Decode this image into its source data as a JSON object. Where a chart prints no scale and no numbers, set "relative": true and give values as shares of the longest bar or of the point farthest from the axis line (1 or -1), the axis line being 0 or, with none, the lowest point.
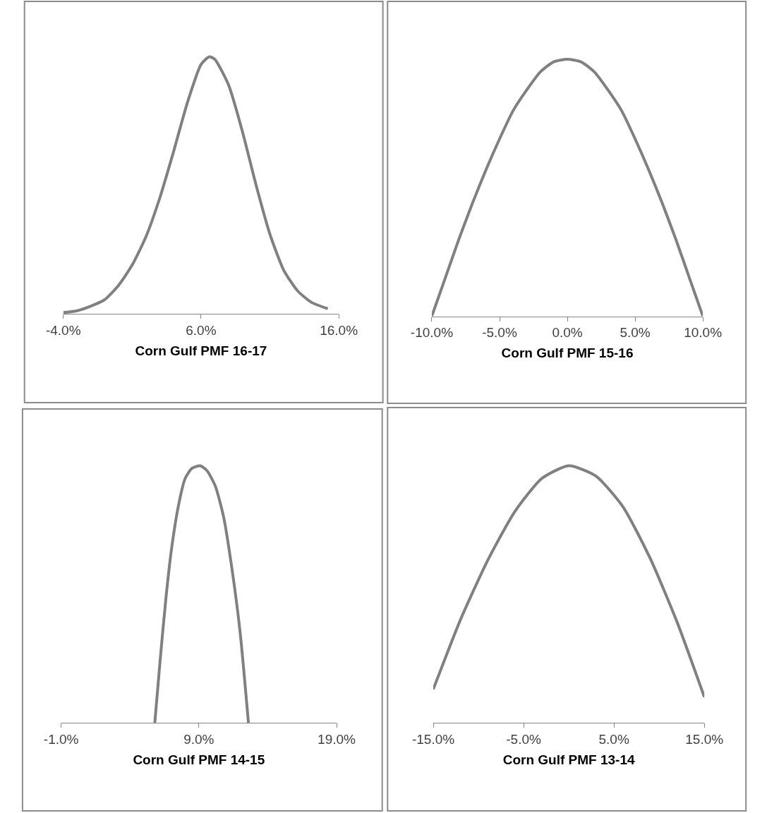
{
  "chart_data": [
    {
      "type": "line",
      "relative": true,
      "xlabel": "Corn Gulf PMF 16-17",
      "xlim": [
        -4,
        16
      ],
      "xticks": [
        {
          "value": -4,
          "label": "-4.0%"
        },
        {
          "value": 6,
          "label": "6.0%"
        },
        {
          "value": 16,
          "label": "16.0%"
        }
      ],
      "tick_labels": "x",
      "grid": false,
      "marker": "none",
      "line_style": "solid",
      "series": [
        {
          "color": "#808080",
          "x": [
            -4,
            -3,
            -2,
            -1,
            0,
            1,
            2,
            3,
            4,
            5,
            6,
            6.6,
            7,
            8,
            9,
            10,
            11,
            12,
            13,
            14,
            15.2
          ],
          "values": [
            0.005,
            0.012,
            0.03,
            0.055,
            0.11,
            0.19,
            0.3,
            0.45,
            0.63,
            0.82,
            0.97,
            1,
            0.99,
            0.89,
            0.71,
            0.5,
            0.31,
            0.17,
            0.09,
            0.045,
            0.02
          ]
        }
      ]
    },
    {
      "type": "line",
      "relative": true,
      "xlabel": "Corn Gulf PMF 15-16",
      "xlim": [
        -10,
        10
      ],
      "xticks": [
        {
          "value": -10,
          "label": "-10.0%"
        },
        {
          "value": -5,
          "label": "-5.0%"
        },
        {
          "value": 0,
          "label": "0.0%"
        },
        {
          "value": 5,
          "label": "5.0%"
        },
        {
          "value": 10,
          "label": "10.0%"
        }
      ],
      "tick_labels": "x",
      "grid": false,
      "marker": "none",
      "line_style": "solid",
      "series": [
        {
          "color": "#808080",
          "x": [
            -10,
            -9,
            -8,
            -7,
            -6,
            -5,
            -4,
            -3,
            -2,
            -1,
            0,
            1,
            2,
            3,
            4,
            5,
            6,
            7,
            8,
            9,
            10
          ],
          "values": [
            0,
            0.15,
            0.3,
            0.44,
            0.57,
            0.69,
            0.8,
            0.88,
            0.95,
            0.99,
            1,
            0.99,
            0.95,
            0.88,
            0.8,
            0.69,
            0.57,
            0.44,
            0.3,
            0.15,
            0
          ]
        }
      ]
    },
    {
      "type": "line",
      "relative": true,
      "xlabel": "Corn Gulf PMF 14-15",
      "xlim": [
        -1,
        19
      ],
      "xticks": [
        {
          "value": -1,
          "label": "-1.0%"
        },
        {
          "value": 9,
          "label": "9.0%"
        },
        {
          "value": 19,
          "label": "19.0%"
        }
      ],
      "tick_labels": "x",
      "grid": false,
      "marker": "none",
      "line_style": "solid",
      "series": [
        {
          "color": "#808080",
          "x": [
            5.8,
            6.2,
            6.6,
            7.0,
            7.5,
            8.0,
            8.5,
            9.1,
            9.6,
            10.2,
            10.8,
            11.4,
            12.0,
            12.6
          ],
          "values": [
            0,
            0.25,
            0.48,
            0.67,
            0.84,
            0.95,
            0.99,
            1,
            0.98,
            0.92,
            0.8,
            0.6,
            0.35,
            0
          ]
        }
      ]
    },
    {
      "type": "line",
      "relative": true,
      "xlabel": "Corn Gulf PMF 13-14",
      "xlim": [
        -15,
        15
      ],
      "xticks": [
        {
          "value": -15,
          "label": "-15.0%"
        },
        {
          "value": -5,
          "label": "-5.0%"
        },
        {
          "value": 5,
          "label": "5.0%"
        },
        {
          "value": 15,
          "label": "15.0%"
        }
      ],
      "tick_labels": "x",
      "grid": false,
      "marker": "none",
      "line_style": "solid",
      "series": [
        {
          "color": "#808080",
          "x": [
            -15,
            -12,
            -9,
            -6,
            -3,
            0,
            3,
            6,
            9,
            12,
            15
          ],
          "values": [
            0.13,
            0.4,
            0.63,
            0.82,
            0.95,
            1,
            0.96,
            0.84,
            0.64,
            0.39,
            0.1
          ]
        }
      ]
    }
  ]
}
